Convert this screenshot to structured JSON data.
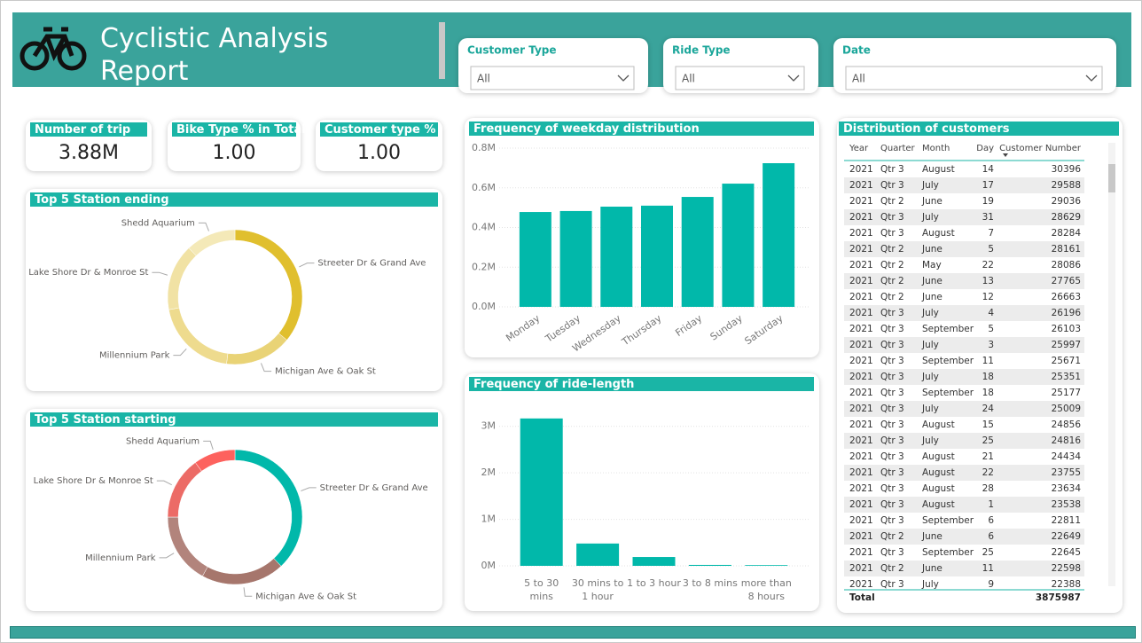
{
  "header": {
    "title": "Cyclistic Analysis Report"
  },
  "filters": [
    {
      "label": "Customer Type",
      "value": "All"
    },
    {
      "label": "Ride Type",
      "value": "All"
    },
    {
      "label": "Date",
      "value": "All"
    }
  ],
  "kpis": [
    {
      "label": "Number of trip",
      "value": "3.88M"
    },
    {
      "label": "Bike Type % in Total",
      "value": "1.00"
    },
    {
      "label": "Customer type %",
      "value": "1.00"
    }
  ],
  "chart_data": [
    {
      "type": "pie",
      "donut": true,
      "title": "Top 5 Station ending",
      "categories": [
        "Streeter Dr & Grand Ave",
        "Michigan Ave & Oak St",
        "Millennium Park",
        "Lake Shore Dr & Monroe St",
        "Shedd Aquarium"
      ],
      "values": [
        36,
        16,
        20,
        16,
        12
      ],
      "colors": [
        "#e0bf2e",
        "#e9d376",
        "#eedb8e",
        "#f1e2a4",
        "#f4e9b8"
      ]
    },
    {
      "type": "pie",
      "donut": true,
      "title": "Top 5 Station starting",
      "categories": [
        "Streeter Dr & Grand Ave",
        "Michigan Ave & Oak St",
        "Millennium Park",
        "Lake Shore Dr & Monroe St",
        "Shedd Aquarium"
      ],
      "values": [
        38,
        20,
        17,
        15,
        10
      ],
      "colors": [
        "#01b8aa",
        "#a6766c",
        "#b2847c",
        "#ec6b66",
        "#fd625e"
      ]
    },
    {
      "type": "bar",
      "title": "Frequency of weekday distribution",
      "categories": [
        "Monday",
        "Tuesday",
        "Wednesday",
        "Thursday",
        "Friday",
        "Sunday",
        "Saturday"
      ],
      "values": [
        478000,
        483000,
        505000,
        510000,
        554000,
        621000,
        724000
      ],
      "color": "#01b8aa",
      "ylim": [
        0,
        800000
      ],
      "yticks": [
        {
          "value": 0,
          "label": "0.0M"
        },
        {
          "value": 200000,
          "label": "0.2M"
        },
        {
          "value": 400000,
          "label": "0.4M"
        },
        {
          "value": 600000,
          "label": "0.6M"
        },
        {
          "value": 800000,
          "label": "0.8M"
        }
      ],
      "grid": true,
      "rotate_labels": true
    },
    {
      "type": "bar",
      "title": "Frequency of ride-length",
      "categories": [
        "5 to 30 mins",
        "30 mins to 1 hour",
        "1 to 3 hour",
        "3 to 8 mins",
        "more than 8 hours"
      ],
      "values": [
        3170000,
        480000,
        190000,
        20000,
        15000
      ],
      "color": "#01b8aa",
      "ylim": [
        0,
        3300000
      ],
      "yticks": [
        {
          "value": 0,
          "label": "0M"
        },
        {
          "value": 1000000,
          "label": "1M"
        },
        {
          "value": 2000000,
          "label": "2M"
        },
        {
          "value": 3000000,
          "label": "3M"
        }
      ],
      "grid": true,
      "rotate_labels": false
    }
  ],
  "table": {
    "title": "Distribution of customers",
    "columns": [
      "Year",
      "Quarter",
      "Month",
      "Day",
      "Customer Number"
    ],
    "rows": [
      [
        2021,
        "Qtr 3",
        "August",
        14,
        30396
      ],
      [
        2021,
        "Qtr 3",
        "July",
        17,
        29588
      ],
      [
        2021,
        "Qtr 2",
        "June",
        19,
        29036
      ],
      [
        2021,
        "Qtr 3",
        "July",
        31,
        28629
      ],
      [
        2021,
        "Qtr 3",
        "August",
        7,
        28284
      ],
      [
        2021,
        "Qtr 2",
        "June",
        5,
        28161
      ],
      [
        2021,
        "Qtr 2",
        "May",
        22,
        28086
      ],
      [
        2021,
        "Qtr 2",
        "June",
        13,
        27765
      ],
      [
        2021,
        "Qtr 2",
        "June",
        12,
        26663
      ],
      [
        2021,
        "Qtr 3",
        "July",
        4,
        26196
      ],
      [
        2021,
        "Qtr 3",
        "September",
        5,
        26103
      ],
      [
        2021,
        "Qtr 3",
        "July",
        3,
        25997
      ],
      [
        2021,
        "Qtr 3",
        "September",
        11,
        25671
      ],
      [
        2021,
        "Qtr 3",
        "July",
        18,
        25351
      ],
      [
        2021,
        "Qtr 3",
        "September",
        18,
        25177
      ],
      [
        2021,
        "Qtr 3",
        "July",
        24,
        25009
      ],
      [
        2021,
        "Qtr 3",
        "August",
        15,
        24856
      ],
      [
        2021,
        "Qtr 3",
        "July",
        25,
        24816
      ],
      [
        2021,
        "Qtr 3",
        "August",
        21,
        24434
      ],
      [
        2021,
        "Qtr 3",
        "August",
        22,
        23755
      ],
      [
        2021,
        "Qtr 3",
        "August",
        28,
        23634
      ],
      [
        2021,
        "Qtr 3",
        "August",
        1,
        23538
      ],
      [
        2021,
        "Qtr 3",
        "September",
        6,
        22811
      ],
      [
        2021,
        "Qtr 2",
        "June",
        6,
        22649
      ],
      [
        2021,
        "Qtr 3",
        "September",
        25,
        22645
      ],
      [
        2021,
        "Qtr 2",
        "June",
        11,
        22598
      ],
      [
        2021,
        "Qtr 3",
        "July",
        9,
        22388
      ]
    ],
    "total_label": "Total",
    "total": 3875987
  }
}
